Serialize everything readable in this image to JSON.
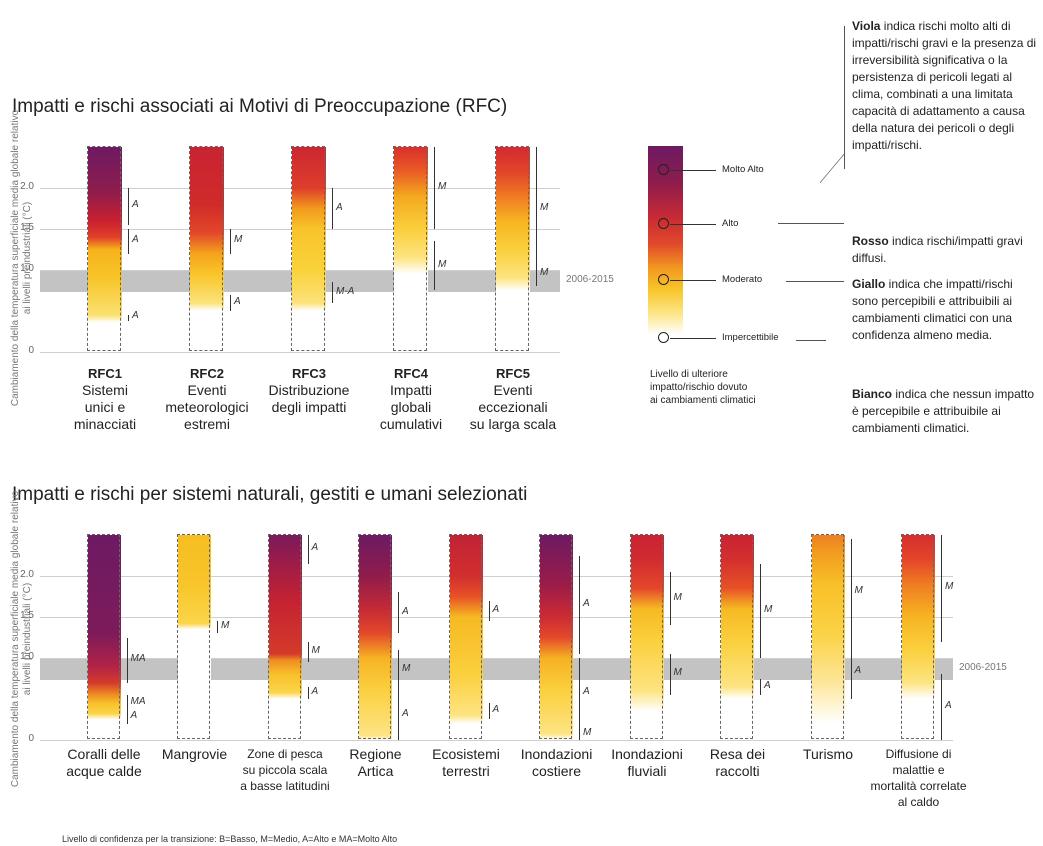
{
  "charts": {
    "rfc": {
      "title": "Impatti e rischi associati ai Motivi di Preoccupazione (RFC)",
      "ylabel": "Cambiamento della temperatura superficiale media globale relativo ai livelli preindustriali (°C)",
      "band_label": "2006-2015"
    },
    "sys": {
      "title": "Impatti e rischi per sistemi naturali, gestiti e umani selezionati",
      "ylabel": "Cambiamento della temperatura superficiale media globale relativo ai livelli preindustriali (°C)",
      "band_label": "2006-2015"
    }
  },
  "chart_data": [
    {
      "type": "bar",
      "title": "Impatti e rischi associati ai Motivi di Preoccupazione (RFC)",
      "ylabel": "Cambiamento della temperatura superficiale media globale relativo ai livelli preindustriali (°C)",
      "ylim": [
        0,
        2.5
      ],
      "yticks": [
        "0",
        "1.0",
        "1.5",
        "2.0"
      ],
      "reference_band": {
        "label": "2006-2015",
        "from": 0.73,
        "to": 0.99
      },
      "bars": [
        {
          "name": "RFC1",
          "label": [
            "Sistemi",
            "unici e",
            "minacciati"
          ],
          "stops": [
            [
              0,
              "#ffffff"
            ],
            [
              0.36,
              "#ffffff"
            ],
            [
              0.45,
              "#fbe070"
            ],
            [
              0.9,
              "#f7c52a"
            ],
            [
              1.25,
              "#f7b21b"
            ],
            [
              1.4,
              "#e0402a"
            ],
            [
              1.6,
              "#c92030"
            ],
            [
              1.95,
              "#8e1c4c"
            ],
            [
              2.5,
              "#6d1a63"
            ]
          ],
          "transitions": [
            {
              "from": 0.4,
              "to": 0.45,
              "conf": "A"
            },
            {
              "from": 1.2,
              "to": 1.5,
              "conf": "A"
            },
            {
              "from": 1.55,
              "to": 2.0,
              "conf": "A"
            }
          ]
        },
        {
          "name": "RFC2",
          "label": [
            "Eventi",
            "meteorologici",
            "estremi"
          ],
          "stops": [
            [
              0,
              "#ffffff"
            ],
            [
              0.5,
              "#ffffff"
            ],
            [
              0.6,
              "#fbe27a"
            ],
            [
              0.95,
              "#f9c52a"
            ],
            [
              1.2,
              "#f4a31c"
            ],
            [
              1.45,
              "#e2472a"
            ],
            [
              1.8,
              "#d02b2a"
            ],
            [
              2.5,
              "#c82333"
            ]
          ],
          "transitions": [
            {
              "from": 0.5,
              "to": 0.7,
              "conf": "A"
            },
            {
              "from": 1.2,
              "to": 1.5,
              "conf": "M"
            }
          ]
        },
        {
          "name": "RFC3",
          "label": [
            "Distribuzione",
            "degli impatti"
          ],
          "stops": [
            [
              0,
              "#ffffff"
            ],
            [
              0.5,
              "#ffffff"
            ],
            [
              0.6,
              "#fbe27a"
            ],
            [
              1.0,
              "#fad23a"
            ],
            [
              1.5,
              "#f8c42a"
            ],
            [
              1.75,
              "#f29a1d"
            ],
            [
              2.0,
              "#dd3e2b"
            ],
            [
              2.5,
              "#cc2632"
            ]
          ],
          "transitions": [
            {
              "from": 0.6,
              "to": 0.85,
              "conf": "M-A"
            },
            {
              "from": 1.5,
              "to": 2.0,
              "conf": "A"
            }
          ]
        },
        {
          "name": "RFC4",
          "label": [
            "Impatti",
            "globali",
            "cumulativi"
          ],
          "stops": [
            [
              0,
              "#ffffff"
            ],
            [
              0.95,
              "#ffffff"
            ],
            [
              1.15,
              "#fde482"
            ],
            [
              1.5,
              "#fbcf3c"
            ],
            [
              1.9,
              "#f3a91f"
            ],
            [
              2.2,
              "#ea5c25"
            ],
            [
              2.5,
              "#d92f2c"
            ]
          ],
          "transitions": [
            {
              "from": 0.75,
              "to": 1.35,
              "conf": "M"
            },
            {
              "from": 1.5,
              "to": 2.5,
              "conf": "M"
            }
          ]
        },
        {
          "name": "RFC5",
          "label": [
            "Eventi",
            "eccezionali",
            "su larga scala"
          ],
          "stops": [
            [
              0,
              "#ffffff"
            ],
            [
              0.75,
              "#ffffff"
            ],
            [
              0.9,
              "#fde482"
            ],
            [
              1.25,
              "#fbcf3c"
            ],
            [
              1.6,
              "#f7b421"
            ],
            [
              1.9,
              "#ef7a22"
            ],
            [
              2.2,
              "#e2442a"
            ],
            [
              2.5,
              "#d32a30"
            ]
          ],
          "transitions": [
            {
              "from": 0.8,
              "to": 1.1,
              "conf": "M"
            },
            {
              "from": 1.0,
              "to": 2.5,
              "conf": "M"
            }
          ]
        }
      ]
    },
    {
      "type": "bar",
      "title": "Impatti e rischi per sistemi naturali, gestiti e umani selezionati",
      "ylabel": "Cambiamento della temperatura superficiale media globale relativo ai livelli preindustriali (°C)",
      "ylim": [
        0,
        2.5
      ],
      "yticks": [
        "0",
        "1.0",
        "1.5",
        "2.0"
      ],
      "reference_band": {
        "label": "2006-2015",
        "from": 0.73,
        "to": 0.99
      },
      "bars": [
        {
          "label": [
            "Coralli delle",
            "acque calde"
          ],
          "stops": [
            [
              0,
              "#ffffff"
            ],
            [
              0.25,
              "#ffffff"
            ],
            [
              0.32,
              "#fbd54a"
            ],
            [
              0.45,
              "#f7c02a"
            ],
            [
              0.55,
              "#ef8f22"
            ],
            [
              0.7,
              "#d43a2c"
            ],
            [
              0.9,
              "#b12347"
            ],
            [
              1.3,
              "#7d1b5a"
            ],
            [
              2.5,
              "#6d1a63"
            ]
          ],
          "transitions": [
            {
              "from": 0.2,
              "to": 0.35,
              "conf": "A"
            },
            {
              "from": 0.35,
              "to": 0.55,
              "conf": "MA"
            },
            {
              "from": 0.7,
              "to": 1.25,
              "conf": "MA"
            }
          ]
        },
        {
          "label": [
            "Mangrovie"
          ],
          "dashed": true,
          "stops": [
            [
              0,
              "#ffffff"
            ],
            [
              1.35,
              "#ffffff"
            ],
            [
              1.42,
              "#fbd54a"
            ],
            [
              1.9,
              "#f8c52a"
            ],
            [
              2.5,
              "#f6be22"
            ]
          ],
          "transitions": [
            {
              "from": 1.3,
              "to": 1.45,
              "conf": "M"
            }
          ]
        },
        {
          "label": [
            "Zone di pesca",
            "su piccola scala",
            "a basse latitudini"
          ],
          "stops": [
            [
              0,
              "#ffffff"
            ],
            [
              0.5,
              "#ffffff"
            ],
            [
              0.58,
              "#fbd54a"
            ],
            [
              0.8,
              "#f8c02a"
            ],
            [
              0.97,
              "#ef8e22"
            ],
            [
              1.05,
              "#d53a2a"
            ],
            [
              1.7,
              "#c42232"
            ],
            [
              2.15,
              "#9d1c47"
            ],
            [
              2.5,
              "#7a1a5b"
            ]
          ],
          "transitions": [
            {
              "from": 0.5,
              "to": 0.65,
              "conf": "A"
            },
            {
              "from": 0.95,
              "to": 1.2,
              "conf": "M"
            },
            {
              "from": 2.15,
              "to": 2.5,
              "conf": "A"
            }
          ]
        },
        {
          "label": [
            "Regione",
            "Artica"
          ],
          "stops": [
            [
              0,
              "#ffffff"
            ],
            [
              0.05,
              "#fde486"
            ],
            [
              0.6,
              "#fbd040"
            ],
            [
              1.0,
              "#f6b324"
            ],
            [
              1.3,
              "#e3492a"
            ],
            [
              1.6,
              "#c42a35"
            ],
            [
              2.0,
              "#8f1c4c"
            ],
            [
              2.5,
              "#6d1a63"
            ]
          ],
          "transitions": [
            {
              "from": 0.0,
              "to": 0.6,
              "conf": "A"
            },
            {
              "from": 0.6,
              "to": 1.1,
              "conf": "M"
            },
            {
              "from": 1.3,
              "to": 1.8,
              "conf": "A"
            }
          ]
        },
        {
          "label": [
            "Ecosistemi",
            "terrestri"
          ],
          "stops": [
            [
              0,
              "#ffffff"
            ],
            [
              0.2,
              "#ffffff"
            ],
            [
              0.3,
              "#fde482"
            ],
            [
              0.8,
              "#fbd03e"
            ],
            [
              1.5,
              "#f6b922"
            ],
            [
              1.75,
              "#e75126"
            ],
            [
              2.0,
              "#d12e2f"
            ],
            [
              2.5,
              "#c02335"
            ]
          ],
          "transitions": [
            {
              "from": 0.25,
              "to": 0.45,
              "conf": "A"
            },
            {
              "from": 1.45,
              "to": 1.7,
              "conf": "A"
            }
          ]
        },
        {
          "label": [
            "Inondazioni",
            "costiere"
          ],
          "stops": [
            [
              0,
              "#ffffff"
            ],
            [
              0.08,
              "#fde482"
            ],
            [
              0.6,
              "#fbd03e"
            ],
            [
              1.0,
              "#f6b122"
            ],
            [
              1.25,
              "#e3492b"
            ],
            [
              1.5,
              "#cc2b33"
            ],
            [
              1.9,
              "#9a1c49"
            ],
            [
              2.5,
              "#6d1a63"
            ]
          ],
          "transitions": [
            {
              "from": 0.0,
              "to": 0.15,
              "conf": "M"
            },
            {
              "from": 0.15,
              "to": 1.0,
              "conf": "A"
            },
            {
              "from": 1.05,
              "to": 2.25,
              "conf": "A"
            }
          ]
        },
        {
          "label": [
            "Inondazioni",
            "fluviali"
          ],
          "stops": [
            [
              0,
              "#ffffff"
            ],
            [
              0.35,
              "#ffffff"
            ],
            [
              0.6,
              "#fde482"
            ],
            [
              1.2,
              "#fbd03e"
            ],
            [
              1.6,
              "#f6b922"
            ],
            [
              1.85,
              "#e4472a"
            ],
            [
              2.2,
              "#d12b30"
            ],
            [
              2.5,
              "#c82333"
            ]
          ],
          "transitions": [
            {
              "from": 0.55,
              "to": 1.05,
              "conf": "M"
            },
            {
              "from": 1.4,
              "to": 2.05,
              "conf": "M"
            }
          ]
        },
        {
          "label": [
            "Resa dei",
            "raccolti"
          ],
          "stops": [
            [
              0,
              "#ffffff"
            ],
            [
              0.5,
              "#ffffff"
            ],
            [
              0.65,
              "#fde482"
            ],
            [
              1.2,
              "#fbd03e"
            ],
            [
              1.6,
              "#f6b922"
            ],
            [
              1.85,
              "#e75126"
            ],
            [
              2.2,
              "#d42f2e"
            ],
            [
              2.5,
              "#c82333"
            ]
          ],
          "transitions": [
            {
              "from": 0.55,
              "to": 0.75,
              "conf": "A"
            },
            {
              "from": 1.0,
              "to": 2.15,
              "conf": "M"
            }
          ]
        },
        {
          "label": [
            "Turismo"
          ],
          "stops": [
            [
              0,
              "#ffffff"
            ],
            [
              0.2,
              "#ffffff"
            ],
            [
              0.7,
              "#fde69a"
            ],
            [
              1.3,
              "#fbd245"
            ],
            [
              1.9,
              "#f8c028"
            ],
            [
              2.3,
              "#f29a1f"
            ],
            [
              2.5,
              "#ec7f22"
            ]
          ],
          "transitions": [
            {
              "from": 0.5,
              "to": 1.15,
              "conf": "A"
            },
            {
              "from": 1.15,
              "to": 2.45,
              "conf": "M"
            }
          ]
        },
        {
          "label": [
            "Diffusione di",
            "malattie e",
            "mortalità correlate",
            "al caldo"
          ],
          "stops": [
            [
              0,
              "#ffffff"
            ],
            [
              0.5,
              "#ffffff"
            ],
            [
              0.7,
              "#fde482"
            ],
            [
              1.1,
              "#fbd03e"
            ],
            [
              1.5,
              "#f7b422"
            ],
            [
              1.9,
              "#ef7c22"
            ],
            [
              2.2,
              "#e4452a"
            ],
            [
              2.5,
              "#d42f2e"
            ]
          ],
          "transitions": [
            {
              "from": 0.0,
              "to": 0.8,
              "conf": "A"
            },
            {
              "from": 1.2,
              "to": 2.5,
              "conf": "M"
            }
          ]
        }
      ]
    }
  ],
  "legend": {
    "title": [
      "Livello di ulteriore",
      "impatto/rischio dovuto",
      "ai cambiamenti climatici"
    ],
    "levels": [
      "Molto Alto",
      "Alto",
      "Moderato",
      "Impercettibile"
    ]
  },
  "notes": [
    {
      "bold": "Viola",
      "text": " indica rischi molto alti di impatti/rischi gravi e la presenza di irreversibilità significativa o la persistenza di pericoli legati al clima, combinati a una limitata capacità di adattamento a causa della natura dei pericoli o degli impatti/rischi."
    },
    {
      "bold": "Rosso",
      "text": " indica rischi/impatti gravi diffusi."
    },
    {
      "bold": "Giallo",
      "text": " indica che impatti/rischi sono percepibili e attribuibili ai cambiamenti climatici con una confidenza almeno media."
    },
    {
      "bold": "Bianco",
      "text": " indica che nessun impatto è percepibile e attribuibile ai cambiamenti climatici."
    }
  ],
  "footnote": "Livello di confidenza per la transizione: B=Basso, M=Medio, A=Alto e MA=Molto Alto"
}
